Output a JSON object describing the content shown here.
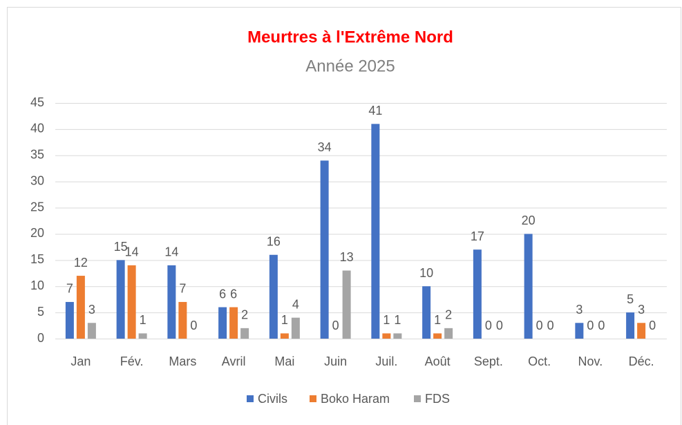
{
  "chart_data": {
    "type": "bar",
    "title": "Meurtres à l'Extrême Nord",
    "subtitle": "Année 2025",
    "categories": [
      "Jan",
      "Fév.",
      "Mars",
      "Avril",
      "Mai",
      "Juin",
      "Juil.",
      "Août",
      "Sept.",
      "Oct.",
      "Nov.",
      "Déc."
    ],
    "series": [
      {
        "name": "Civils",
        "color": "#4472c4",
        "values": [
          7,
          15,
          14,
          6,
          16,
          34,
          41,
          10,
          17,
          20,
          3,
          5
        ]
      },
      {
        "name": "Boko Haram",
        "color": "#ed7d31",
        "values": [
          12,
          14,
          7,
          6,
          1,
          0,
          1,
          1,
          0,
          0,
          0,
          3
        ]
      },
      {
        "name": "FDS",
        "color": "#a5a5a5",
        "values": [
          3,
          1,
          0,
          2,
          4,
          13,
          1,
          2,
          0,
          0,
          0,
          0
        ]
      }
    ],
    "ylim": [
      0,
      45
    ],
    "yticks": [
      0,
      5,
      10,
      15,
      20,
      25,
      30,
      35,
      40,
      45
    ],
    "grid": true,
    "legend": "bottom"
  }
}
